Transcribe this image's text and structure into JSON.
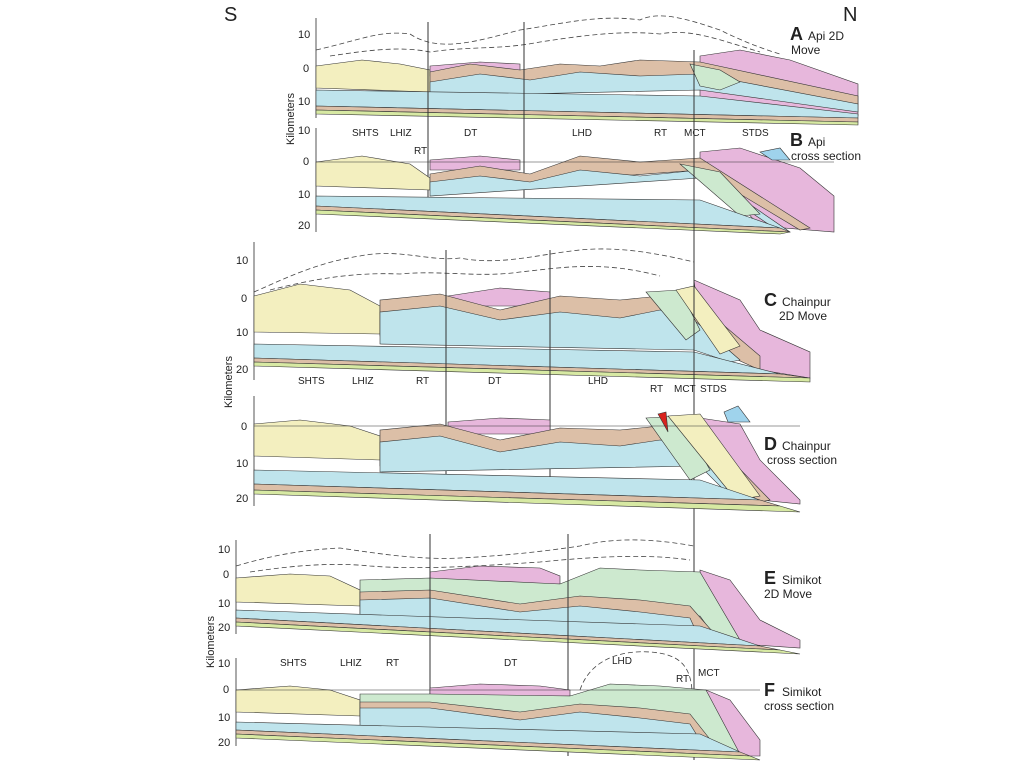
{
  "orientation": {
    "south": "S",
    "north": "N"
  },
  "axis_title": "Kilometers",
  "ticks": [
    "10",
    "0",
    "10",
    "20"
  ],
  "colors": {
    "yellow": "#f3efbf",
    "tan": "#dcbfa7",
    "blue": "#bfe4ec",
    "green": "#cde9cf",
    "pink": "#e7b7dc",
    "lightblue": "#9fd3ec",
    "red": "#d8231e",
    "limegreen": "#d7e9a3",
    "line": "#333333"
  },
  "panels": [
    {
      "letter": "A",
      "title": [
        "Api 2D",
        "Move"
      ],
      "zones": []
    },
    {
      "letter": "B",
      "title": [
        "Api",
        "cross section"
      ],
      "zones": [
        "SHTS",
        "LHIZ",
        "RT",
        "DT",
        "LHD",
        "RT",
        "MCT",
        "STDS"
      ]
    },
    {
      "letter": "C",
      "title": [
        "Chainpur",
        "2D Move"
      ],
      "zones": []
    },
    {
      "letter": "D",
      "title": [
        "Chainpur",
        "cross section"
      ],
      "zones": [
        "SHTS",
        "LHIZ",
        "RT",
        "DT",
        "LHD",
        "RT",
        "MCT",
        "STDS"
      ]
    },
    {
      "letter": "E",
      "title": [
        "Simikot",
        "2D Move"
      ],
      "zones": []
    },
    {
      "letter": "F",
      "title": [
        "Simikot",
        "cross section"
      ],
      "zones": [
        "SHTS",
        "LHIZ",
        "RT",
        "DT",
        "LHD",
        "RT",
        "MCT"
      ]
    }
  ]
}
